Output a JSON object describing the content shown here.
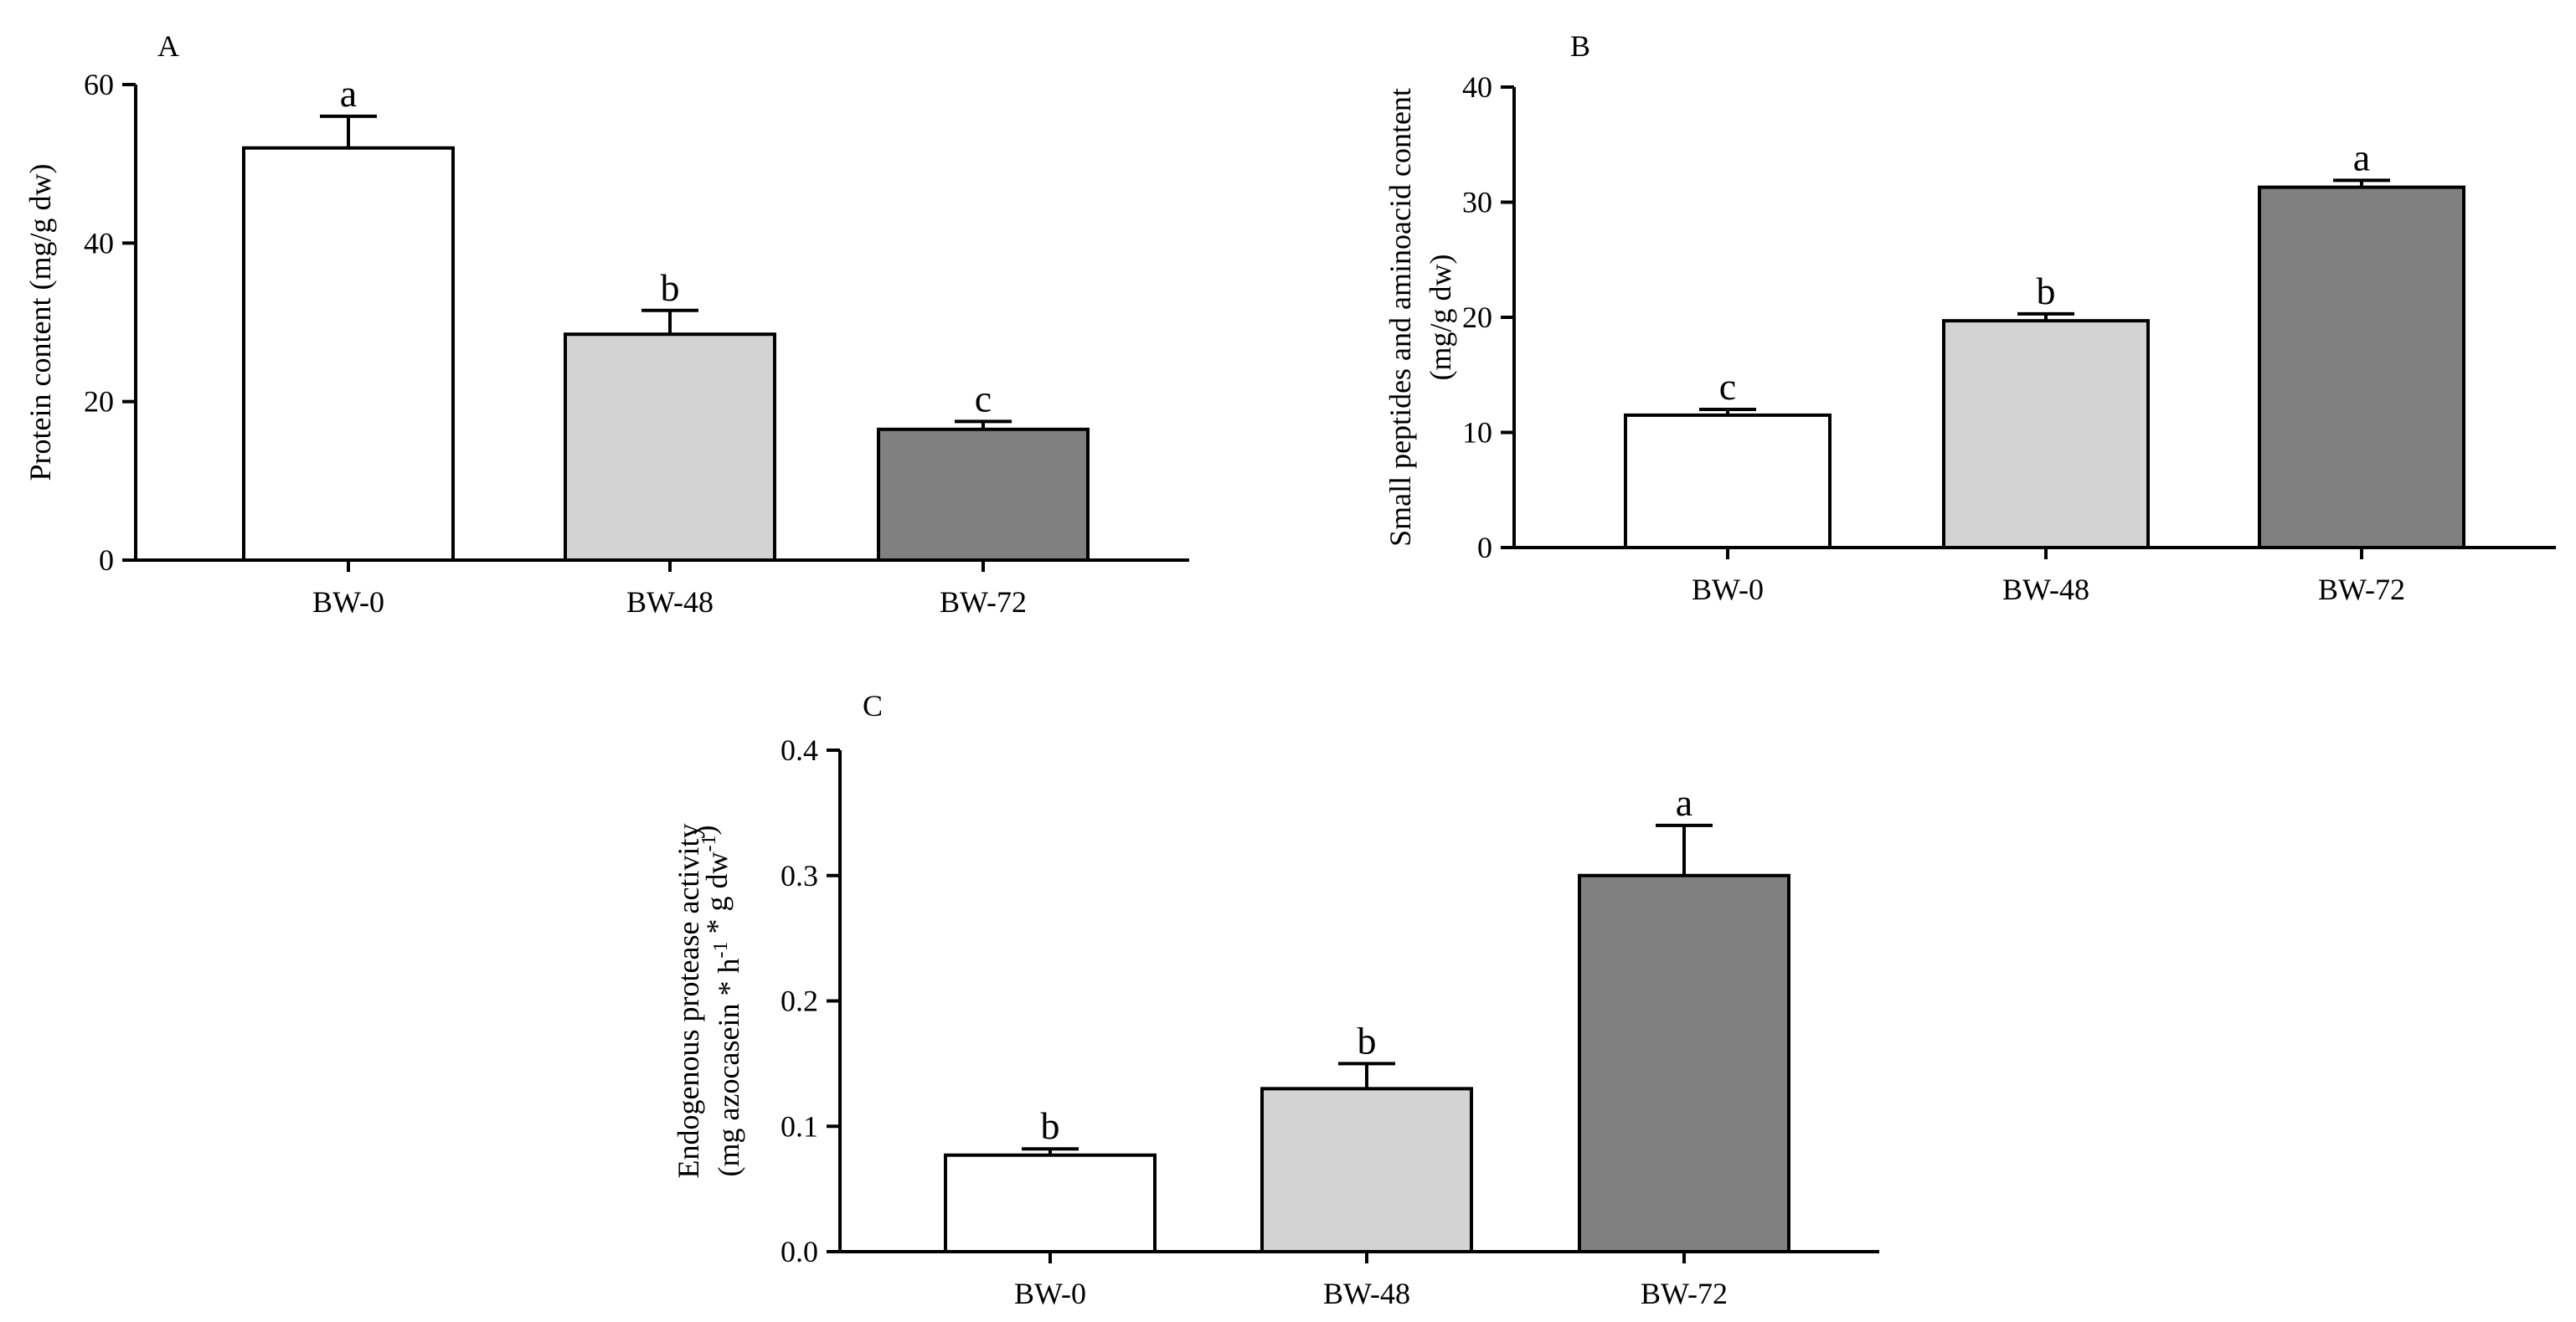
{
  "figure": {
    "description_free": true
  },
  "chart_data": [
    {
      "type": "bar",
      "panel": "A",
      "categories": [
        "BW-0",
        "BW-48",
        "BW-72"
      ],
      "values": [
        52,
        28.5,
        16.5
      ],
      "errors": [
        4,
        3,
        1
      ],
      "significance": [
        "a",
        "b",
        "c"
      ],
      "colors": [
        "#ffffff",
        "#d3d3d3",
        "#808080"
      ],
      "ylabel_lines": [
        "Protein content (mg/g dw)"
      ],
      "ylim": [
        0,
        60
      ],
      "yticks": [
        0,
        20,
        40,
        60
      ],
      "ytick_labels": [
        "0",
        "20",
        "40",
        "60"
      ],
      "legend": "none",
      "grid": false
    },
    {
      "type": "bar",
      "panel": "B",
      "categories": [
        "BW-0",
        "BW-48",
        "BW-72"
      ],
      "values": [
        11.5,
        19.7,
        31.3
      ],
      "errors": [
        0.5,
        0.6,
        0.6
      ],
      "significance": [
        "c",
        "b",
        "a"
      ],
      "colors": [
        "#ffffff",
        "#d3d3d3",
        "#808080"
      ],
      "ylabel_lines": [
        "Small peptides and aminoacid content",
        "(mg/g dw)"
      ],
      "ylim": [
        0,
        40
      ],
      "yticks": [
        0,
        10,
        20,
        30,
        40
      ],
      "ytick_labels": [
        "0",
        "10",
        "20",
        "30",
        "40"
      ],
      "legend": "none",
      "grid": false
    },
    {
      "type": "bar",
      "panel": "C",
      "categories": [
        "BW-0",
        "BW-48",
        "BW-72"
      ],
      "values": [
        0.077,
        0.13,
        0.3
      ],
      "errors": [
        0.005,
        0.02,
        0.04
      ],
      "significance": [
        "b",
        "b",
        "a"
      ],
      "colors": [
        "#ffffff",
        "#d3d3d3",
        "#808080"
      ],
      "ylabel_lines": [
        "Endogenous protease activity",
        "(mg azocasein * h-1 * g dw-1)"
      ],
      "ylabel_rich": {
        "line1": "Endogenous protease activity",
        "line2_parts": [
          {
            "text": "(mg azocasein * h",
            "sup": false
          },
          {
            "text": "-1",
            "sup": true
          },
          {
            "text": " * g dw",
            "sup": false
          },
          {
            "text": "-1",
            "sup": true
          },
          {
            "text": ")",
            "sup": false
          }
        ]
      },
      "ylim": [
        0,
        0.4
      ],
      "yticks": [
        0,
        0.1,
        0.2,
        0.3,
        0.4
      ],
      "ytick_labels": [
        "0.0",
        "0.1",
        "0.2",
        "0.3",
        "0.4"
      ],
      "legend": "none",
      "grid": false
    }
  ]
}
